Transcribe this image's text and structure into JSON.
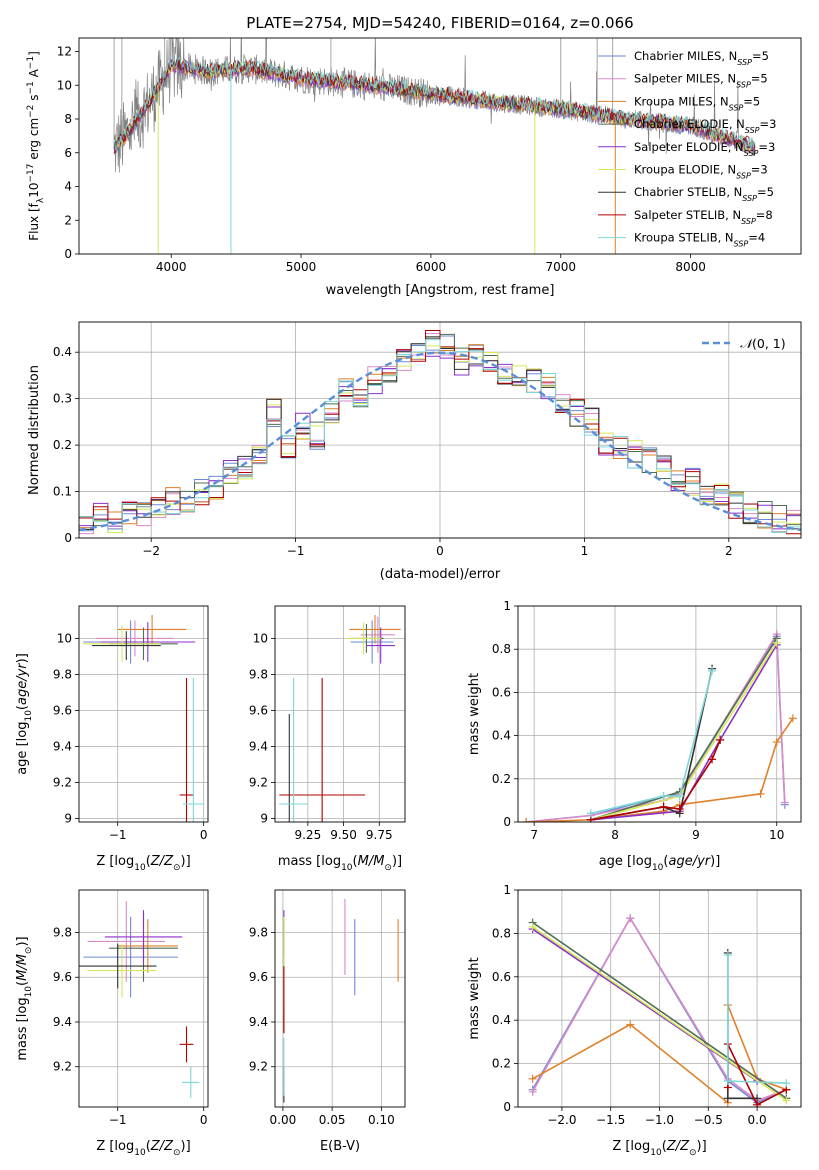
{
  "figure_title": "PLATE=2754, MJD=54240, FIBERID=0164, z=0.066",
  "legend_entries": [
    {
      "model": "Chabrier MILES",
      "n": "5",
      "color": "#6c8ad6"
    },
    {
      "model": "Salpeter MILES",
      "n": "5",
      "color": "#d98ac8"
    },
    {
      "model": "Kroupa MILES",
      "n": "5",
      "color": "#e0802a"
    },
    {
      "model": "Chabrier ELODIE",
      "n": "3",
      "color": "#4f6f52"
    },
    {
      "model": "Salpeter ELODIE",
      "n": "3",
      "color": "#8b2fc9"
    },
    {
      "model": "Kroupa ELODIE",
      "n": "3",
      "color": "#d6e85a"
    },
    {
      "model": "Chabrier STELIB",
      "n": "5",
      "color": "#333333"
    },
    {
      "model": "Salpeter STELIB",
      "n": "8",
      "color": "#b00000"
    },
    {
      "model": "Kroupa STELIB",
      "n": "4",
      "color": "#7fd6d6"
    }
  ],
  "chart_data": [
    {
      "id": "spectrum",
      "type": "line",
      "xlabel": "wavelength [Angstrom, rest frame]",
      "ylabel": "Flux [f_λ 10^-17 erg cm^-2 s^-1 A^-1]",
      "xlim": [
        3290,
        8850
      ],
      "ylim": [
        0,
        12.8
      ],
      "xticks": [
        4000,
        5000,
        6000,
        7000,
        8000
      ],
      "yticks": [
        0,
        2,
        4,
        6,
        8,
        10,
        12
      ],
      "grid": false,
      "legend": "right",
      "data_range": [
        3560,
        8500
      ],
      "data_flux_start": 6.2,
      "data_flux_peak": 11.5,
      "data_flux_end": 6.2,
      "model_flux_continuum": [
        {
          "x": 3560,
          "y": 6.2
        },
        {
          "x": 3700,
          "y": 7.5
        },
        {
          "x": 3900,
          "y": 9.8
        },
        {
          "x": 4000,
          "y": 11.2
        },
        {
          "x": 4300,
          "y": 10.8
        },
        {
          "x": 4600,
          "y": 11.0
        },
        {
          "x": 5000,
          "y": 10.4
        },
        {
          "x": 5500,
          "y": 10.0
        },
        {
          "x": 6000,
          "y": 9.5
        },
        {
          "x": 6500,
          "y": 9.0
        },
        {
          "x": 7000,
          "y": 8.6
        },
        {
          "x": 7500,
          "y": 8.0
        },
        {
          "x": 8000,
          "y": 7.6
        },
        {
          "x": 8500,
          "y": 6.3
        }
      ]
    },
    {
      "id": "residual-distribution",
      "type": "line",
      "xlabel": "(data-model)/error",
      "ylabel": "Normed distribution",
      "xlim": [
        -2.5,
        2.5
      ],
      "ylim": [
        0,
        0.465
      ],
      "xticks": [
        -2,
        -1,
        0,
        1,
        2
      ],
      "yticks": [
        0.0,
        0.1,
        0.2,
        0.3,
        0.4
      ],
      "grid": true,
      "legend": "top-right",
      "gaussian_label": "N(0,1)",
      "bins": [
        -2.5,
        -2.4,
        -2.3,
        -2.2,
        -2.1,
        -2.0,
        -1.9,
        -1.8,
        -1.7,
        -1.6,
        -1.5,
        -1.4,
        -1.3,
        -1.2,
        -1.1,
        -1.0,
        -0.9,
        -0.8,
        -0.7,
        -0.6,
        -0.5,
        -0.4,
        -0.3,
        -0.2,
        -0.1,
        0.0,
        0.1,
        0.2,
        0.3,
        0.4,
        0.5,
        0.6,
        0.7,
        0.8,
        0.9,
        1.0,
        1.1,
        1.2,
        1.3,
        1.4,
        1.5,
        1.6,
        1.7,
        1.8,
        1.9,
        2.0,
        2.1,
        2.2,
        2.3,
        2.4,
        2.5
      ],
      "histogram_mean": [
        0.02,
        0.05,
        0.04,
        0.05,
        0.05,
        0.06,
        0.08,
        0.08,
        0.1,
        0.11,
        0.14,
        0.15,
        0.17,
        0.27,
        0.2,
        0.24,
        0.22,
        0.27,
        0.32,
        0.29,
        0.34,
        0.36,
        0.38,
        0.39,
        0.42,
        0.41,
        0.38,
        0.4,
        0.38,
        0.36,
        0.35,
        0.34,
        0.33,
        0.3,
        0.27,
        0.25,
        0.2,
        0.2,
        0.18,
        0.17,
        0.15,
        0.13,
        0.12,
        0.1,
        0.09,
        0.07,
        0.06,
        0.05,
        0.04,
        0.03
      ]
    },
    {
      "id": "age-vs-Z",
      "type": "scatter",
      "xlabel": "Z [log10(Z/Z⊙)]",
      "ylabel": "age [log10(age/yr)]",
      "xlim": [
        -1.45,
        0.05
      ],
      "ylim": [
        8.98,
        10.18
      ],
      "xticks": [
        -1,
        0
      ],
      "yticks": [
        9.0,
        9.2,
        9.4,
        9.6,
        9.8,
        10.0
      ],
      "grid": true,
      "points": [
        {
          "x": -0.85,
          "y": 9.98,
          "xerr": 0.55,
          "yerr": 0.12,
          "color": "#6c8ad6"
        },
        {
          "x": -0.8,
          "y": 10.0,
          "xerr": 0.45,
          "yerr": 0.1,
          "color": "#d98ac8"
        },
        {
          "x": -0.6,
          "y": 10.05,
          "xerr": 0.4,
          "yerr": 0.08,
          "color": "#e0802a"
        },
        {
          "x": -0.7,
          "y": 9.97,
          "xerr": 0.4,
          "yerr": 0.09,
          "color": "#4f6f52"
        },
        {
          "x": -0.65,
          "y": 9.98,
          "xerr": 0.55,
          "yerr": 0.11,
          "color": "#8b2fc9"
        },
        {
          "x": -0.95,
          "y": 9.97,
          "xerr": 0.45,
          "yerr": 0.1,
          "color": "#d6e85a"
        },
        {
          "x": -0.9,
          "y": 9.96,
          "xerr": 0.4,
          "yerr": 0.08,
          "color": "#333333"
        },
        {
          "x": -0.2,
          "y": 9.13,
          "xerr": 0.08,
          "yerr": 0.65,
          "color": "#b00000"
        },
        {
          "x": -0.12,
          "y": 9.08,
          "xerr": 0.12,
          "yerr": 0.7,
          "color": "#7fd6d6"
        }
      ]
    },
    {
      "id": "age-vs-mass",
      "type": "scatter",
      "xlabel": "mass [log10(M/M⊙)]",
      "ylabel": "",
      "xlim": [
        9.02,
        9.93
      ],
      "ylim": [
        8.98,
        10.18
      ],
      "xticks": [
        9.25,
        9.5,
        9.75
      ],
      "xticklabels": [
        "9.25",
        "9.50",
        "9.75"
      ],
      "yticks": [
        9.0,
        9.2,
        9.4,
        9.6,
        9.8,
        10.0
      ],
      "grid": true,
      "points": [
        {
          "x": 9.7,
          "y": 9.98,
          "xerr": 0.15,
          "yerr": 0.12,
          "color": "#6c8ad6"
        },
        {
          "x": 9.74,
          "y": 10.02,
          "xerr": 0.12,
          "yerr": 0.1,
          "color": "#d98ac8"
        },
        {
          "x": 9.72,
          "y": 10.05,
          "xerr": 0.18,
          "yerr": 0.08,
          "color": "#e0802a"
        },
        {
          "x": 9.66,
          "y": 10.0,
          "xerr": 0.12,
          "yerr": 0.08,
          "color": "#4f6f52"
        },
        {
          "x": 9.76,
          "y": 9.96,
          "xerr": 0.1,
          "yerr": 0.1,
          "color": "#8b2fc9"
        },
        {
          "x": 9.64,
          "y": 10.0,
          "xerr": 0.12,
          "yerr": 0.09,
          "color": "#d6e85a"
        },
        {
          "x": 9.12,
          "y": 9.08,
          "xerr": 0.06,
          "yerr": 0.5,
          "color": "#333333"
        },
        {
          "x": 9.35,
          "y": 9.13,
          "xerr": 0.3,
          "yerr": 0.65,
          "color": "#b00000"
        },
        {
          "x": 9.15,
          "y": 9.08,
          "xerr": 0.1,
          "yerr": 0.7,
          "color": "#7fd6d6"
        }
      ]
    },
    {
      "id": "mass-weight-vs-age",
      "type": "line",
      "xlabel": "age [log10(age/yr)]",
      "ylabel": "mass weight",
      "xlim": [
        6.8,
        10.3
      ],
      "ylim": [
        0,
        1.0
      ],
      "xticks": [
        7,
        8,
        9,
        10
      ],
      "yticks": [
        0.0,
        0.2,
        0.4,
        0.6,
        0.8,
        1.0
      ],
      "grid": true,
      "series": [
        {
          "color": "#6c8ad6",
          "x": [
            6.9,
            7.7,
            8.6,
            8.8,
            10.0,
            10.1
          ],
          "y": [
            0.0,
            0.03,
            0.12,
            0.13,
            0.86,
            0.08
          ]
        },
        {
          "color": "#d98ac8",
          "x": [
            6.9,
            7.7,
            8.6,
            8.8,
            10.0,
            10.1
          ],
          "y": [
            0.0,
            0.03,
            0.1,
            0.13,
            0.87,
            0.09
          ]
        },
        {
          "color": "#e0802a",
          "x": [
            6.9,
            7.7,
            8.6,
            8.8,
            9.8,
            10.0,
            10.2
          ],
          "y": [
            0.0,
            0.01,
            0.05,
            0.08,
            0.13,
            0.37,
            0.48
          ]
        },
        {
          "color": "#4f6f52",
          "x": [
            7.7,
            8.8,
            10.0
          ],
          "y": [
            0.01,
            0.14,
            0.85
          ]
        },
        {
          "color": "#8b2fc9",
          "x": [
            7.7,
            8.8,
            9.3,
            10.0
          ],
          "y": [
            0.01,
            0.05,
            0.38,
            0.82
          ]
        },
        {
          "color": "#d6e85a",
          "x": [
            7.7,
            8.8,
            10.0
          ],
          "y": [
            0.01,
            0.12,
            0.83
          ]
        },
        {
          "color": "#333333",
          "x": [
            7.7,
            8.6,
            8.8,
            9.2
          ],
          "y": [
            0.01,
            0.07,
            0.04,
            0.71
          ]
        },
        {
          "color": "#b00000",
          "x": [
            7.7,
            8.6,
            8.8,
            9.2,
            9.3
          ],
          "y": [
            0.01,
            0.07,
            0.06,
            0.29,
            0.38
          ]
        },
        {
          "color": "#7fd6d6",
          "x": [
            7.7,
            8.6,
            8.8,
            9.2
          ],
          "y": [
            0.04,
            0.12,
            0.12,
            0.7
          ]
        }
      ]
    },
    {
      "id": "mass-vs-Z",
      "type": "scatter",
      "xlabel": "Z [log10(Z/Z⊙)]",
      "ylabel": "mass [log10(M/M⊙)]",
      "xlim": [
        -1.45,
        0.05
      ],
      "ylim": [
        9.02,
        9.99
      ],
      "xticks": [
        -1,
        0
      ],
      "yticks": [
        9.2,
        9.4,
        9.6,
        9.8
      ],
      "grid": true,
      "points": [
        {
          "x": -0.85,
          "y": 9.69,
          "xerr": 0.55,
          "yerr": 0.18,
          "color": "#6c8ad6"
        },
        {
          "x": -0.9,
          "y": 9.76,
          "xerr": 0.45,
          "yerr": 0.18,
          "color": "#d98ac8"
        },
        {
          "x": -0.65,
          "y": 9.74,
          "xerr": 0.35,
          "yerr": 0.12,
          "color": "#e0802a"
        },
        {
          "x": -0.7,
          "y": 9.73,
          "xerr": 0.4,
          "yerr": 0.15,
          "color": "#4f6f52"
        },
        {
          "x": -0.7,
          "y": 9.78,
          "xerr": 0.45,
          "yerr": 0.12,
          "color": "#8b2fc9"
        },
        {
          "x": -0.95,
          "y": 9.63,
          "xerr": 0.4,
          "yerr": 0.12,
          "color": "#d6e85a"
        },
        {
          "x": -1.0,
          "y": 9.65,
          "xerr": 0.45,
          "yerr": 0.1,
          "color": "#333333"
        },
        {
          "x": -0.2,
          "y": 9.3,
          "xerr": 0.08,
          "yerr": 0.08,
          "color": "#b00000"
        },
        {
          "x": -0.15,
          "y": 9.13,
          "xerr": 0.1,
          "yerr": 0.07,
          "color": "#7fd6d6"
        }
      ]
    },
    {
      "id": "mass-vs-EBV",
      "type": "scatter",
      "xlabel": "E(B-V)",
      "ylabel": "",
      "xlim": [
        -0.008,
        0.124
      ],
      "ylim": [
        9.02,
        9.99
      ],
      "xticks": [
        0.0,
        0.05,
        0.1
      ],
      "xticklabels": [
        "0.00",
        "0.05",
        "0.10"
      ],
      "yticks": [
        9.2,
        9.4,
        9.6,
        9.8
      ],
      "grid": true,
      "points": [
        {
          "x": 0.073,
          "y": 9.69,
          "yerr": 0.17,
          "color": "#6c8ad6"
        },
        {
          "x": 0.063,
          "y": 9.78,
          "yerr": 0.17,
          "color": "#d98ac8"
        },
        {
          "x": 0.117,
          "y": 9.72,
          "yerr": 0.14,
          "color": "#e0802a"
        },
        {
          "x": 0.001,
          "y": 9.6,
          "yerr": 0.25,
          "color": "#4f6f52"
        },
        {
          "x": 0.001,
          "y": 9.8,
          "yerr": 0.1,
          "color": "#8b2fc9"
        },
        {
          "x": 0.001,
          "y": 9.67,
          "yerr": 0.2,
          "color": "#d6e85a"
        },
        {
          "x": 0.001,
          "y": 9.12,
          "yerr": 0.08,
          "color": "#333333"
        },
        {
          "x": 0.001,
          "y": 9.5,
          "yerr": 0.15,
          "color": "#b00000"
        },
        {
          "x": 0.001,
          "y": 9.2,
          "yerr": 0.13,
          "color": "#7fd6d6"
        }
      ]
    },
    {
      "id": "mass-weight-vs-Z",
      "type": "line",
      "xlabel": "Z [log10(Z/Z⊙)]",
      "ylabel": "mass weight",
      "xlim": [
        -2.45,
        0.45
      ],
      "ylim": [
        0,
        1.0
      ],
      "xticks": [
        -2.0,
        -1.5,
        -1.0,
        -0.5,
        0.0
      ],
      "xticklabels": [
        "−2.0",
        "−1.5",
        "−1.0",
        "−0.5",
        "0.0"
      ],
      "yticks": [
        0.0,
        0.2,
        0.4,
        0.6,
        0.8,
        1.0
      ],
      "grid": true,
      "series": [
        {
          "color": "#6c8ad6",
          "x": [
            -2.3,
            -1.3,
            -0.3,
            0.0,
            0.3
          ],
          "y": [
            0.08,
            0.87,
            0.12,
            0.02,
            0.08
          ]
        },
        {
          "color": "#d98ac8",
          "x": [
            -2.3,
            -1.3,
            -0.3,
            0.0,
            0.3
          ],
          "y": [
            0.07,
            0.87,
            0.13,
            0.03,
            0.08
          ]
        },
        {
          "color": "#e0802a",
          "x": [
            -2.3,
            -1.3,
            -0.3,
            -0.3,
            0.0,
            0.3
          ],
          "y": [
            0.13,
            0.38,
            0.02,
            0.47,
            0.13,
            0.08
          ]
        },
        {
          "color": "#4f6f52",
          "x": [
            -2.3,
            0.3
          ],
          "y": [
            0.85,
            0.04
          ]
        },
        {
          "color": "#8b2fc9",
          "x": [
            -2.3,
            0.0
          ],
          "y": [
            0.82,
            0.12
          ]
        },
        {
          "color": "#d6e85a",
          "x": [
            -2.3,
            0.3
          ],
          "y": [
            0.83,
            0.03
          ]
        },
        {
          "color": "#333333",
          "x": [
            -0.3,
            -0.3,
            0.0
          ],
          "y": [
            0.71,
            0.04,
            0.04
          ]
        },
        {
          "color": "#b00000",
          "x": [
            -0.3,
            -0.3,
            0.0,
            0.3
          ],
          "y": [
            0.09,
            0.29,
            0.01,
            0.08
          ]
        },
        {
          "color": "#7fd6d6",
          "x": [
            -0.3,
            -0.3,
            0.3
          ],
          "y": [
            0.7,
            0.12,
            0.11
          ]
        }
      ]
    }
  ]
}
